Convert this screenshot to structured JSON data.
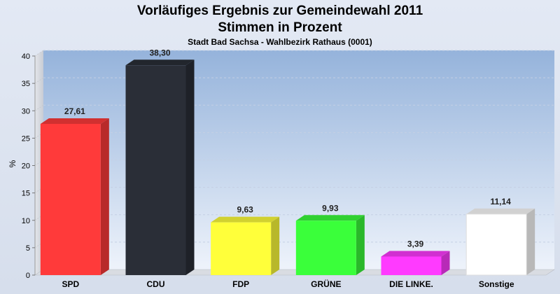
{
  "chart_data": {
    "type": "bar",
    "title": [
      "Vorläufiges Ergebnis zur Gemeindewahl 2011",
      "Stimmen in Prozent"
    ],
    "subtitle": "Stadt Bad Sachsa - Wahlbezirk Rathaus (0001)",
    "ylabel": "%",
    "ylim": [
      0,
      40
    ],
    "yticks": [
      0,
      5,
      10,
      15,
      20,
      25,
      30,
      35,
      40
    ],
    "grid": true,
    "categories": [
      "SPD",
      "CDU",
      "FDP",
      "GRÜNE",
      "DIE LINKE.",
      "Sonstige"
    ],
    "values": [
      27.61,
      38.3,
      9.63,
      9.93,
      3.39,
      11.14
    ],
    "value_labels": [
      "27,61",
      "38,30",
      "9,63",
      "9,93",
      "3,39",
      "11,14"
    ],
    "colors": [
      "#ff3a3a",
      "#2a2e37",
      "#ffff3a",
      "#3aff3a",
      "#ff3aff",
      "#ffffff"
    ]
  }
}
